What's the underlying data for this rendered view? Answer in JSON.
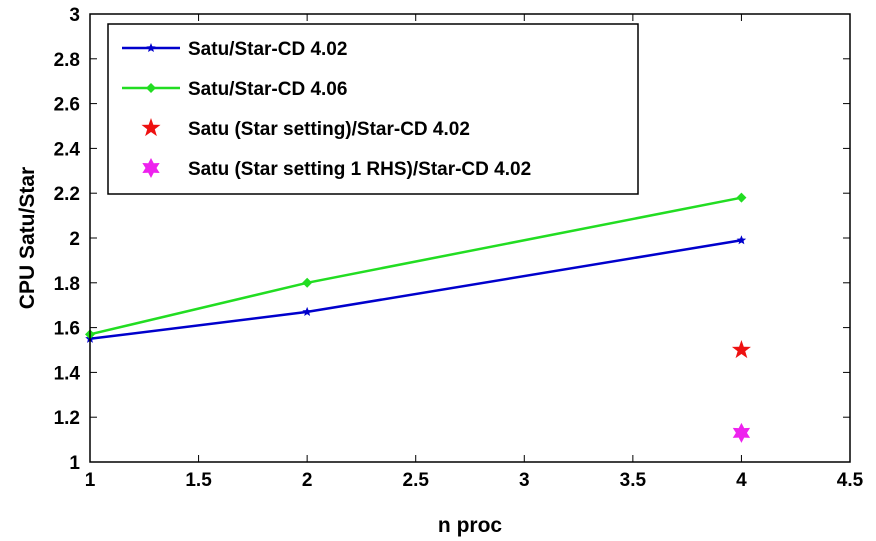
{
  "chart_data": {
    "type": "line",
    "xlabel": "n proc",
    "ylabel": "CPU Satu/Star",
    "xlim": [
      1,
      4.5
    ],
    "ylim": [
      1,
      3
    ],
    "xticks": [
      "1",
      "1.5",
      "2",
      "2.5",
      "3",
      "3.5",
      "4",
      "4.5"
    ],
    "yticks": [
      "1",
      "1.2",
      "1.4",
      "1.6",
      "1.8",
      "2",
      "2.2",
      "2.4",
      "2.6",
      "2.8",
      "3"
    ],
    "grid": false,
    "legend_position": "top-left",
    "series": [
      {
        "name": "Satu/Star-CD 4.02",
        "color": "#0000cc",
        "marker": "star-small",
        "line": true,
        "x": [
          1,
          2,
          4
        ],
        "y": [
          1.55,
          1.67,
          1.99
        ]
      },
      {
        "name": "Satu/Star-CD 4.06",
        "color": "#22dd22",
        "marker": "diamond",
        "line": true,
        "x": [
          1,
          2,
          4
        ],
        "y": [
          1.57,
          1.8,
          2.18
        ]
      },
      {
        "name": "Satu (Star setting)/Star-CD 4.02",
        "color": "#ee1111",
        "marker": "pentagram",
        "line": false,
        "x": [
          4
        ],
        "y": [
          1.5
        ]
      },
      {
        "name": "Satu (Star setting 1 RHS)/Star-CD 4.02",
        "color": "#ee22ee",
        "marker": "hexagram",
        "line": false,
        "x": [
          4
        ],
        "y": [
          1.13
        ]
      }
    ]
  }
}
